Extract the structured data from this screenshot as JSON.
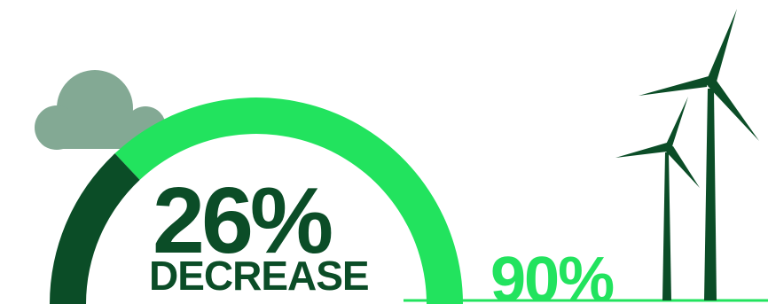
{
  "stat_primary": {
    "value": "26%",
    "label": "DECREASE"
  },
  "stat_secondary": {
    "value": "90%"
  },
  "gauge": {
    "filled_fraction": 0.26
  },
  "colors": {
    "dark_green": "#0b4d27",
    "bright_green": "#22e35e",
    "cloud": "#83a994",
    "background": "#ffffff"
  },
  "icons": [
    "cloud-icon",
    "wind-turbine-icon",
    "wind-turbine-icon"
  ]
}
